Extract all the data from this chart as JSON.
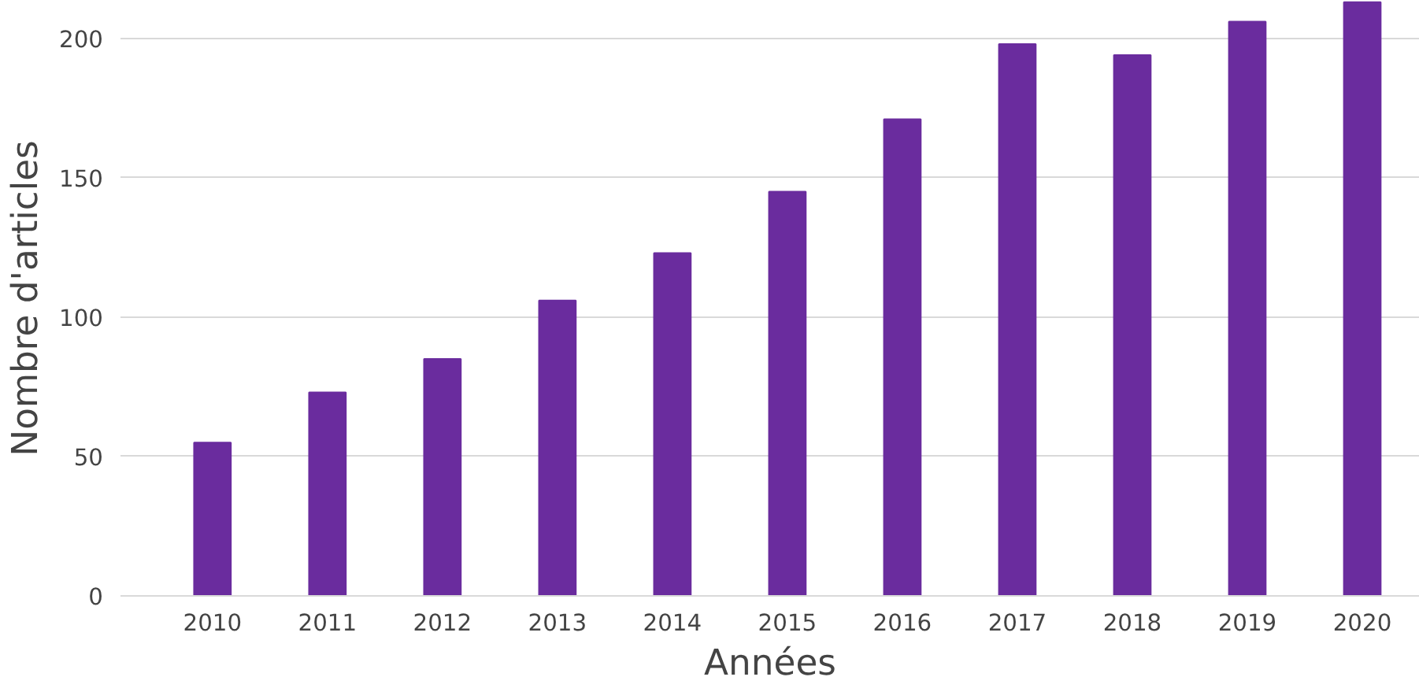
{
  "chart_data": {
    "type": "bar",
    "xlabel": "Années",
    "ylabel": "Nombre d'articles",
    "categories": [
      "2010",
      "2011",
      "2012",
      "2013",
      "2014",
      "2015",
      "2016",
      "2017",
      "2018",
      "2019",
      "2020"
    ],
    "values": [
      55,
      73,
      85,
      106,
      123,
      145,
      171,
      198,
      194,
      206,
      213
    ],
    "color": "#6a2c9e",
    "ylim": [
      0,
      213.5
    ],
    "yticks": [
      0,
      50,
      100,
      150,
      200
    ],
    "grid": "y"
  }
}
